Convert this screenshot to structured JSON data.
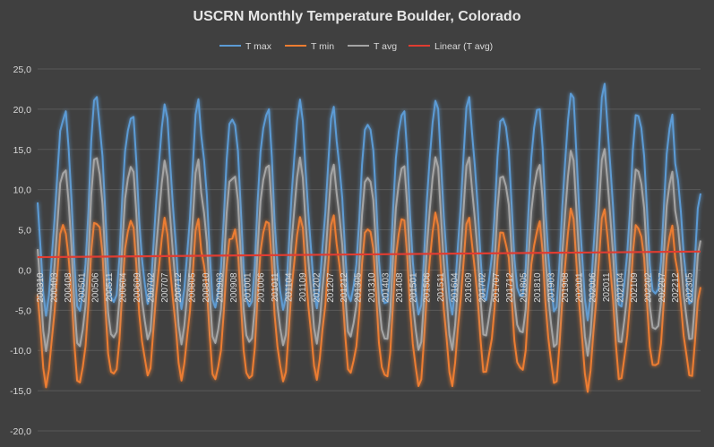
{
  "chart_data": {
    "type": "line",
    "title": "USCRN Monthly Temperature Boulder, Colorado",
    "xlabel": "",
    "ylabel": "",
    "ylim": [
      -20,
      25
    ],
    "yticks": [
      "25,0",
      "20,0",
      "15,0",
      "10,0",
      "5,0",
      "0,0",
      "-5,0",
      "-10,0",
      "-15,0",
      "-20,0"
    ],
    "xticks": [
      "200310",
      "200403",
      "200408",
      "200501",
      "200506",
      "200511",
      "200604",
      "200609",
      "200702",
      "200707",
      "200712",
      "200805",
      "200810",
      "200903",
      "200908",
      "201001",
      "201006",
      "201011",
      "201104",
      "201109",
      "201202",
      "201207",
      "201212",
      "201305",
      "201310",
      "201403",
      "201408",
      "201501",
      "201506",
      "201511",
      "201604",
      "201609",
      "201702",
      "201707",
      "201712",
      "201805",
      "201810",
      "201903",
      "201908",
      "202001",
      "202006",
      "202011",
      "202104",
      "202109",
      "202202",
      "202207",
      "202212",
      "202305"
    ],
    "x_start": "2003-10",
    "x_end": "2023-05",
    "grid": true,
    "legend_position": "top",
    "series": [
      {
        "name": "T max",
        "color": "#5b9bd5",
        "mean": 7.6,
        "amplitude": 12.2,
        "annual_peaks": [
          17.6,
          21.7,
          19.5,
          20.6,
          21.0,
          18.8,
          19.1,
          20.8,
          20.6,
          18.9,
          19.0,
          19.8,
          21.4,
          20.3,
          20.5,
          20.5,
          22.1,
          20.3,
          20.7,
          13.8
        ]
      },
      {
        "name": "T min",
        "color": "#ed7d31",
        "mean": -3.9,
        "amplitude": 9.6,
        "annual_peaks": [
          4.6,
          5.9,
          6.8,
          6.5,
          6.1,
          4.0,
          5.9,
          6.2,
          7.1,
          5.9,
          6.1,
          5.9,
          6.4,
          6.1,
          5.4,
          6.2,
          6.5,
          6.3,
          6.9,
          2.0
        ]
      },
      {
        "name": "T avg",
        "color": "#a5a5a5",
        "mean": 1.8,
        "amplitude": 10.8,
        "annual_peaks": [
          11.0,
          14.1,
          13.5,
          13.6,
          13.5,
          11.4,
          12.6,
          13.6,
          13.4,
          12.3,
          12.4,
          12.8,
          13.9,
          13.1,
          12.9,
          13.4,
          14.0,
          13.4,
          13.6,
          7.9
        ]
      },
      {
        "name": "Linear (T avg)",
        "color": "#e03c31",
        "trend_start": 1.6,
        "trend_end": 2.3
      }
    ]
  }
}
